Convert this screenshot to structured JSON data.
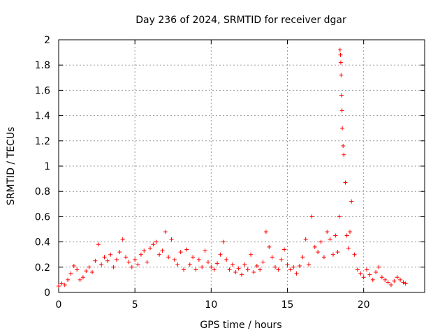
{
  "chart_data": {
    "type": "scatter",
    "title": "Day 236 of 2024, SRMTID for receiver dgar",
    "xlabel": "GPS time / hours",
    "ylabel": "SRMTID / TECUs",
    "xlim": [
      0,
      24
    ],
    "ylim": [
      0,
      2
    ],
    "xticks": [
      0,
      5,
      10,
      15,
      20
    ],
    "xtick_labels": [
      "0",
      "5",
      "10",
      "15",
      "20"
    ],
    "yticks": [
      0,
      0.2,
      0.4,
      0.6,
      0.8,
      1,
      1.2,
      1.4,
      1.6,
      1.8,
      2
    ],
    "ytick_labels": [
      "0",
      "0.2",
      "0.4",
      "0.6",
      "0.8",
      "1",
      "1.2",
      "1.4",
      "1.6",
      "1.8",
      "2"
    ],
    "grid": true,
    "marker": "+",
    "series": [
      {
        "name": "SRMTID",
        "color": "#ff0000",
        "x": [
          0.0,
          0.2,
          0.4,
          0.6,
          0.8,
          1.0,
          1.2,
          1.4,
          1.6,
          1.8,
          2.0,
          2.2,
          2.4,
          2.6,
          2.8,
          3.0,
          3.2,
          3.4,
          3.6,
          3.8,
          4.0,
          4.2,
          4.4,
          4.6,
          4.8,
          5.0,
          5.2,
          5.4,
          5.6,
          5.8,
          6.0,
          6.2,
          6.4,
          6.6,
          6.8,
          7.0,
          7.2,
          7.4,
          7.6,
          7.8,
          8.0,
          8.2,
          8.4,
          8.6,
          8.8,
          9.0,
          9.2,
          9.4,
          9.6,
          9.8,
          10.0,
          10.2,
          10.4,
          10.6,
          10.8,
          11.0,
          11.2,
          11.4,
          11.6,
          11.8,
          12.0,
          12.2,
          12.4,
          12.6,
          12.8,
          13.0,
          13.2,
          13.4,
          13.6,
          13.8,
          14.0,
          14.2,
          14.4,
          14.6,
          14.8,
          15.0,
          15.2,
          15.4,
          15.6,
          15.8,
          16.0,
          16.2,
          16.4,
          16.6,
          16.8,
          17.0,
          17.2,
          17.4,
          17.6,
          17.8,
          18.0,
          18.15,
          18.3,
          18.4,
          18.45,
          18.48,
          18.5,
          18.52,
          18.55,
          18.58,
          18.6,
          18.65,
          18.7,
          18.8,
          18.9,
          19.0,
          19.1,
          19.2,
          19.4,
          19.6,
          19.8,
          20.0,
          20.2,
          20.4,
          20.6,
          20.8,
          21.0,
          21.2,
          21.4,
          21.6,
          21.8,
          22.0,
          22.2,
          22.4,
          22.6,
          22.75
        ],
        "y": [
          0.05,
          0.07,
          0.06,
          0.1,
          0.15,
          0.21,
          0.18,
          0.1,
          0.12,
          0.17,
          0.2,
          0.16,
          0.25,
          0.38,
          0.22,
          0.28,
          0.25,
          0.3,
          0.2,
          0.26,
          0.32,
          0.42,
          0.28,
          0.24,
          0.2,
          0.26,
          0.22,
          0.3,
          0.33,
          0.24,
          0.35,
          0.38,
          0.4,
          0.3,
          0.33,
          0.48,
          0.28,
          0.42,
          0.26,
          0.22,
          0.32,
          0.18,
          0.34,
          0.22,
          0.28,
          0.18,
          0.26,
          0.2,
          0.33,
          0.24,
          0.2,
          0.18,
          0.23,
          0.3,
          0.4,
          0.26,
          0.18,
          0.22,
          0.16,
          0.19,
          0.14,
          0.22,
          0.18,
          0.3,
          0.16,
          0.21,
          0.18,
          0.24,
          0.48,
          0.36,
          0.28,
          0.2,
          0.18,
          0.26,
          0.34,
          0.22,
          0.18,
          0.2,
          0.15,
          0.21,
          0.28,
          0.42,
          0.22,
          0.6,
          0.36,
          0.32,
          0.4,
          0.28,
          0.48,
          0.42,
          0.3,
          0.45,
          0.32,
          0.6,
          1.92,
          1.88,
          1.82,
          1.72,
          1.56,
          1.44,
          1.3,
          1.16,
          1.09,
          0.87,
          0.45,
          0.35,
          0.48,
          0.72,
          0.3,
          0.18,
          0.15,
          0.12,
          0.18,
          0.14,
          0.1,
          0.16,
          0.2,
          0.12,
          0.1,
          0.08,
          0.06,
          0.09,
          0.12,
          0.1,
          0.08,
          0.07
        ]
      }
    ]
  }
}
